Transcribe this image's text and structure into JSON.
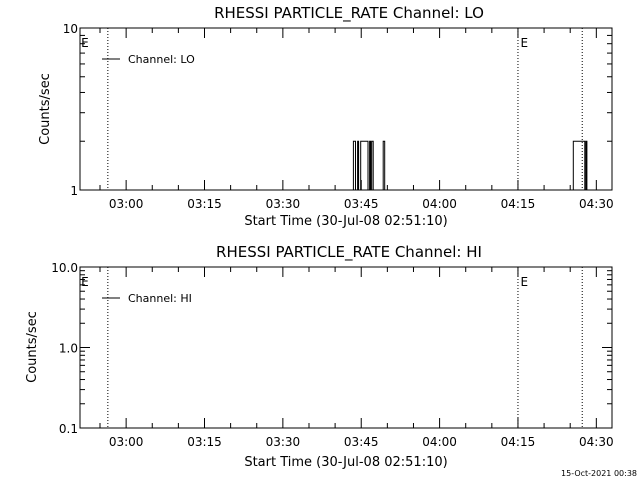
{
  "chart_data": [
    {
      "type": "line",
      "title": "RHESSI PARTICLE_RATE Channel: LO",
      "xlabel": "Start Time (30-Jul-08 02:51:10)",
      "ylabel": "Counts/sec",
      "yscale": "log",
      "ylim": [
        1,
        10
      ],
      "y_tick_labels": [
        "1",
        "10"
      ],
      "x_tick_labels": [
        "03:00",
        "03:15",
        "03:30",
        "03:45",
        "04:00",
        "04:15",
        "04:30"
      ],
      "x_tick_minutes": [
        180,
        195,
        210,
        225,
        240,
        255,
        270
      ],
      "xlim_minutes": [
        171.17,
        273.0
      ],
      "vertical_markers_minutes": [
        176.5,
        255.0,
        267.3
      ],
      "event_labels": [
        {
          "text": "E",
          "minute": 171.2
        },
        {
          "text": "E",
          "minute": 255.3
        }
      ],
      "series": [
        {
          "name": "Channel: LO",
          "x_minutes": [
            223.3,
            223.5,
            223.5,
            223.9,
            223.9,
            224.3,
            224.3,
            224.5,
            224.5,
            224.9,
            224.9,
            225.1,
            225.1,
            226.3,
            226.3,
            226.6,
            226.6,
            226.8,
            226.8,
            227.0,
            227.0,
            227.3,
            227.3,
            227.5,
            227.5,
            229.2,
            229.2,
            229.5,
            229.5,
            229.7,
            265.4,
            265.6,
            265.6,
            267.8,
            267.8,
            268.0,
            268.0,
            268.2,
            268.2,
            268.4
          ],
          "y": [
            1,
            1,
            2,
            2,
            1,
            1,
            2,
            2,
            1,
            1,
            2,
            2,
            2,
            2,
            1,
            1,
            2,
            2,
            1,
            1,
            2,
            2,
            1,
            1,
            1,
            1,
            2,
            2,
            1,
            1,
            1,
            1,
            2,
            2,
            1,
            1,
            2,
            2,
            1,
            1
          ]
        }
      ],
      "legend": "top-left"
    },
    {
      "type": "line",
      "title": "RHESSI PARTICLE_RATE Channel: HI",
      "xlabel": "Start Time (30-Jul-08 02:51:10)",
      "ylabel": "Counts/sec",
      "yscale": "log",
      "ylim": [
        0.1,
        10
      ],
      "y_tick_labels": [
        "0.1",
        "1.0",
        "10.0"
      ],
      "x_tick_labels": [
        "03:00",
        "03:15",
        "03:30",
        "03:45",
        "04:00",
        "04:15",
        "04:30"
      ],
      "x_tick_minutes": [
        180,
        195,
        210,
        225,
        240,
        255,
        270
      ],
      "xlim_minutes": [
        171.17,
        273.0
      ],
      "vertical_markers_minutes": [
        176.5,
        255.0,
        267.3
      ],
      "event_labels": [
        {
          "text": "E",
          "minute": 171.2
        },
        {
          "text": "E",
          "minute": 255.3
        }
      ],
      "series": [
        {
          "name": "Channel: HI",
          "x_minutes": [],
          "y": []
        }
      ],
      "legend": "top-left"
    }
  ],
  "footer": {
    "timestamp": "15-Oct-2021 00:38"
  }
}
